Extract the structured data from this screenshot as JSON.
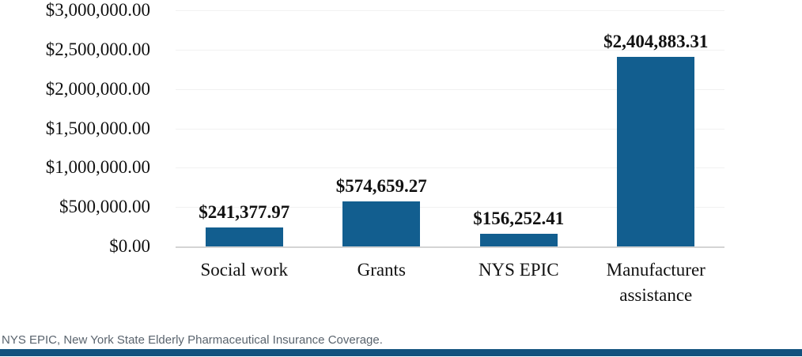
{
  "chart_data": {
    "type": "bar",
    "title": "",
    "categories": [
      "Social work",
      "Grants",
      "NYS EPIC",
      "Manufacturer assistance"
    ],
    "values": [
      241377.97,
      574659.27,
      156252.41,
      2404883.31
    ],
    "value_labels": [
      "$241,377.97",
      "$574,659.27",
      "$156,252.41",
      "$2,404,883.31"
    ],
    "y_ticks": [
      "$3,000,000.00",
      "$2,500,000.00",
      "$2,000,000.00",
      "$1,500,000.00",
      "$1,000,000.00",
      "$500,000.00",
      "$0.00"
    ],
    "ylim": [
      0,
      3000000
    ],
    "xlabel": "",
    "ylabel": "",
    "grid": "horizontal-light",
    "legend": "none"
  },
  "footnote": "NYS EPIC, New York State Elderly Pharmaceutical Insurance Coverage.",
  "colors": {
    "bar": "#125e8f",
    "bottom_rule": "#11527e",
    "gridline": "#f1f1f1",
    "axis_line": "#d4d4d4",
    "footnote_text": "#5a646e"
  }
}
